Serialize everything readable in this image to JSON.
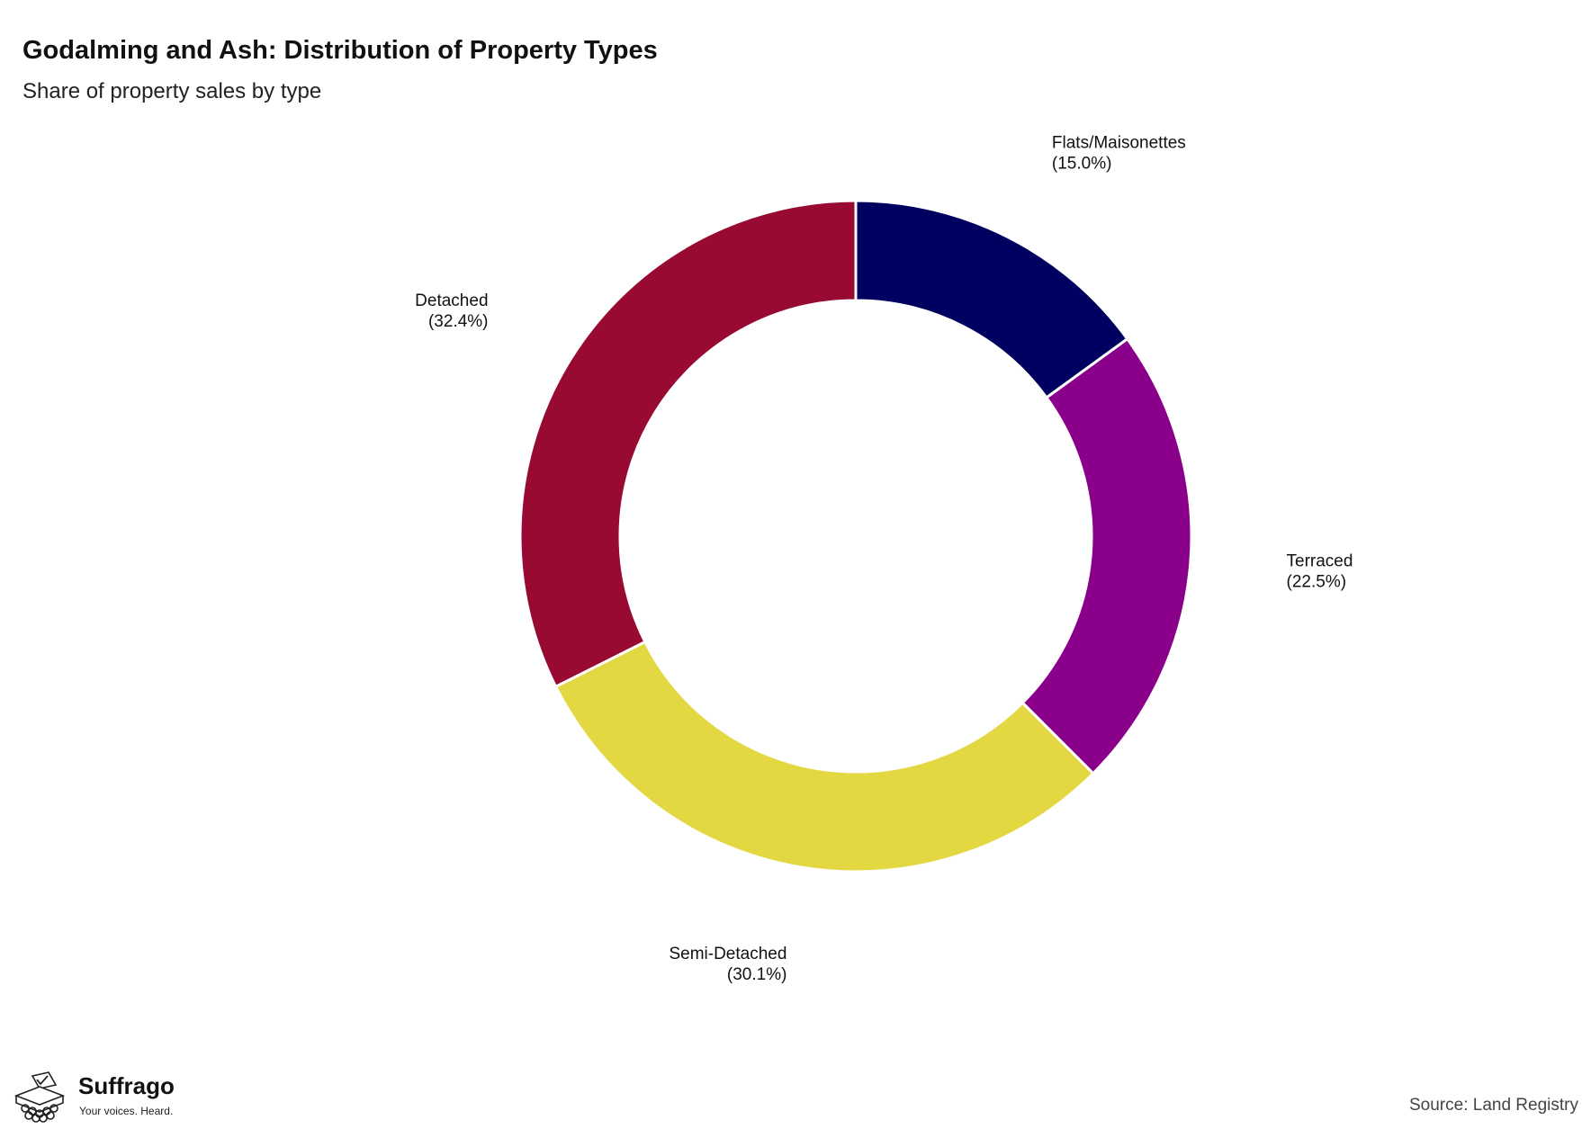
{
  "header": {
    "title": "Godalming and Ash: Distribution of Property Types",
    "subtitle": "Share of property sales by type"
  },
  "chart_data": {
    "type": "pie",
    "variant": "donut",
    "title": "Godalming and Ash: Distribution of Property Types",
    "subtitle": "Share of property sales by type",
    "categories": [
      "Flats/Maisonettes",
      "Terraced",
      "Semi-Detached",
      "Detached"
    ],
    "values": [
      15.0,
      22.5,
      30.1,
      32.4
    ],
    "labels": [
      "(15.0%)",
      "(22.5%)",
      "(30.1%)",
      "(32.4%)"
    ],
    "colors": [
      "#000060",
      "#8b008b",
      "#e3d842",
      "#990a33"
    ]
  },
  "footer": {
    "brand": "Suffrago",
    "tagline": "Your voices. Heard.",
    "source": "Source: Land Registry"
  }
}
